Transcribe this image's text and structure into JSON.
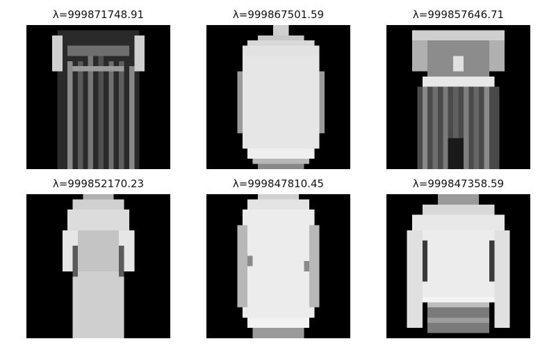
{
  "panels": [
    {
      "title": "λ=999871748.91",
      "image": "dress-dark-striped"
    },
    {
      "title": "λ=999867501.59",
      "image": "long-sleeve-garment-light"
    },
    {
      "title": "λ=999857646.71",
      "image": "dress-patterned"
    },
    {
      "title": "λ=999852170.23",
      "image": "dress-light-sleeves"
    },
    {
      "title": "λ=999847810.45",
      "image": "coat-white"
    },
    {
      "title": "λ=999847358.59",
      "image": "sweater-banded-hem"
    }
  ]
}
